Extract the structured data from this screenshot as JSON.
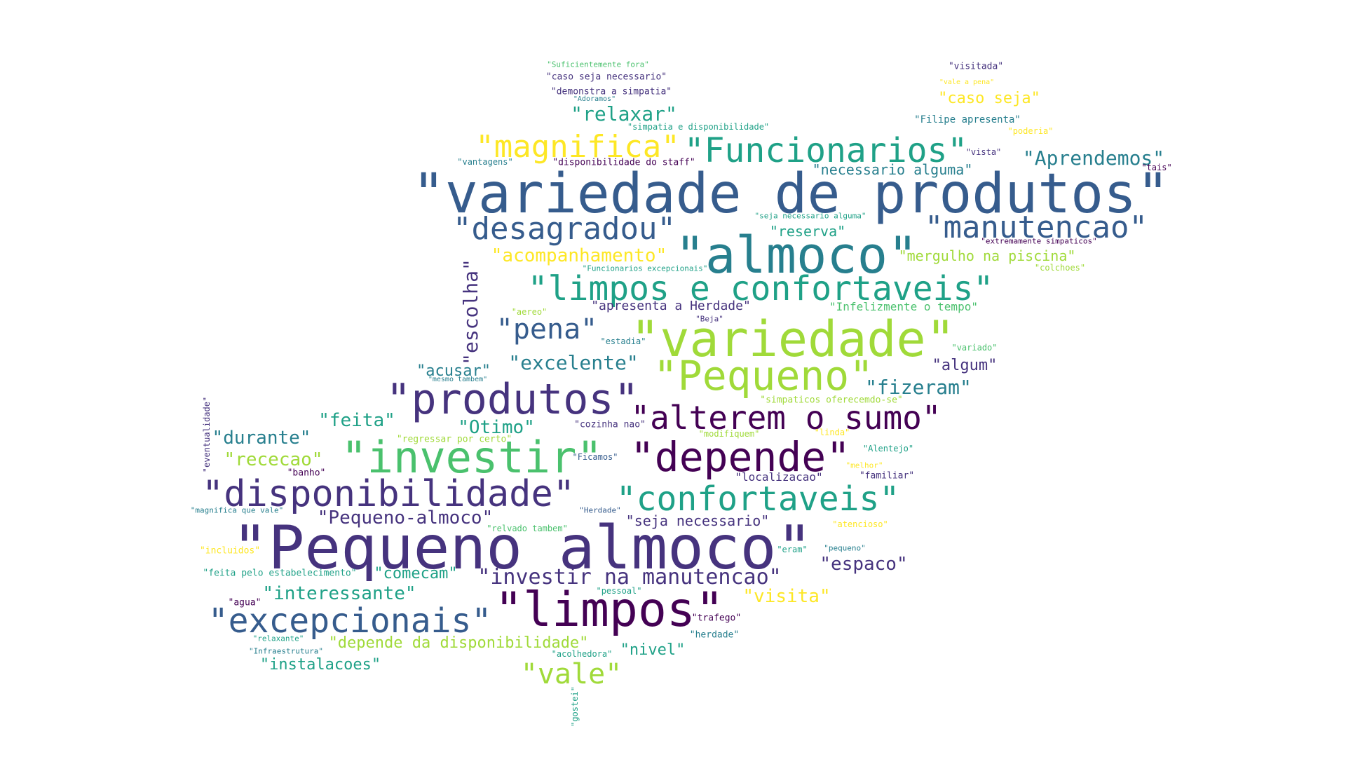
{
  "palette": {
    "dark_purple": "#440154",
    "indigo": "#46337e",
    "slate_blue": "#365c8d",
    "steel_blue": "#277f8e",
    "teal": "#1fa187",
    "green": "#4ac16d",
    "lime": "#a0da39",
    "yellow": "#fde725"
  },
  "words": [
    {
      "text": "\"variedade de produtos\""
    },
    {
      "text": "\"almoco\""
    },
    {
      "text": "\"Pequeno almoco\""
    },
    {
      "text": "\"limpos\""
    },
    {
      "text": "\"variedade\""
    },
    {
      "text": "\"investir\""
    },
    {
      "text": "\"depende\""
    },
    {
      "text": "\"produtos\""
    },
    {
      "text": "\"disponibilidade\""
    },
    {
      "text": "\"Pequeno\""
    },
    {
      "text": "\"limpos e confortaveis\""
    },
    {
      "text": "\"Funcionarios\""
    },
    {
      "text": "\"magnifica\""
    },
    {
      "text": "\"desagradou\""
    },
    {
      "text": "\"manutencao\""
    },
    {
      "text": "\"confortaveis\""
    },
    {
      "text": "\"excepcionais\""
    },
    {
      "text": "\"alterem o sumo\""
    },
    {
      "text": "\"pena\""
    },
    {
      "text": "\"vale\""
    },
    {
      "text": "\"investir na manutencao\""
    },
    {
      "text": "\"Pequeno-almoco\""
    },
    {
      "text": "\"escolha\""
    },
    {
      "text": "\"relaxar\""
    },
    {
      "text": "\"Aprendemos\""
    },
    {
      "text": "\"acompanhamento\""
    },
    {
      "text": "\"excelente\""
    },
    {
      "text": "\"fizeram\""
    },
    {
      "text": "\"durante\""
    },
    {
      "text": "\"interessante\""
    },
    {
      "text": "\"visita\""
    },
    {
      "text": "\"feita\""
    },
    {
      "text": "\"Otimo\""
    },
    {
      "text": "\"espaco\""
    },
    {
      "text": "\"rececao\""
    },
    {
      "text": "\"reserva\""
    },
    {
      "text": "\"necessario alguma\""
    },
    {
      "text": "\"mergulho na piscina\""
    },
    {
      "text": "\"caso seja\""
    },
    {
      "text": "\"acusar\""
    },
    {
      "text": "\"algum\""
    },
    {
      "text": "\"depende da disponibilidade\""
    },
    {
      "text": "\"nivel\""
    },
    {
      "text": "\"instalacoes\""
    },
    {
      "text": "\"comecam\""
    },
    {
      "text": "\"seja necessario\""
    },
    {
      "text": "\"apresenta a Herdade\""
    },
    {
      "text": "\"Infelizmente o tempo\""
    },
    {
      "text": "\"localizacao\""
    },
    {
      "text": "\"Filipe apresenta\""
    },
    {
      "text": "\"demonstra a simpatia\""
    },
    {
      "text": "\"caso seja necessario\""
    },
    {
      "text": "\"visitada\""
    },
    {
      "text": "\"Suficientemente fora\""
    },
    {
      "text": "\"disponibilidade do staff\""
    },
    {
      "text": "\"vantagens\""
    },
    {
      "text": "\"simpatia e disponibilidade\""
    },
    {
      "text": "\"Adoramos\""
    },
    {
      "text": "\"vale a pena\""
    },
    {
      "text": "\"poderia\""
    },
    {
      "text": "\"vista\""
    },
    {
      "text": "\"tais\""
    },
    {
      "text": "\"seja necessario alguma\""
    },
    {
      "text": "\"extremamente simpaticos\""
    },
    {
      "text": "\"colchoes\""
    },
    {
      "text": "\"Funcionarios excepcionais\""
    },
    {
      "text": "\"aereo\""
    },
    {
      "text": "\"Beja\""
    },
    {
      "text": "\"estadia\""
    },
    {
      "text": "\"variado\""
    },
    {
      "text": "\"mesmo tambem\""
    },
    {
      "text": "\"simpaticos oferecemdo-se\""
    },
    {
      "text": "\"cozinha nao\""
    },
    {
      "text": "\"modifiquem\""
    },
    {
      "text": "\"linda\""
    },
    {
      "text": "\"regressar por certo\""
    },
    {
      "text": "\"Alentejo\""
    },
    {
      "text": "\"Ficamos\""
    },
    {
      "text": "\"melhor\""
    },
    {
      "text": "\"familiar\""
    },
    {
      "text": "\"banho\""
    },
    {
      "text": "\"eventualidade\""
    },
    {
      "text": "\"magnifica que vale\""
    },
    {
      "text": "\"Herdade\""
    },
    {
      "text": "\"relvado tambem\""
    },
    {
      "text": "\"atencioso\""
    },
    {
      "text": "\"incluidos\""
    },
    {
      "text": "\"eram\""
    },
    {
      "text": "\"pequeno\""
    },
    {
      "text": "\"feita pelo estabelecimento\""
    },
    {
      "text": "\"agua\""
    },
    {
      "text": "\"pessoal\""
    },
    {
      "text": "\"trafego\""
    },
    {
      "text": "\"herdade\""
    },
    {
      "text": "\"relaxante\""
    },
    {
      "text": "\"Infraestrutura\""
    },
    {
      "text": "\"acolhedora\""
    },
    {
      "text": "\"gostei\""
    }
  ]
}
